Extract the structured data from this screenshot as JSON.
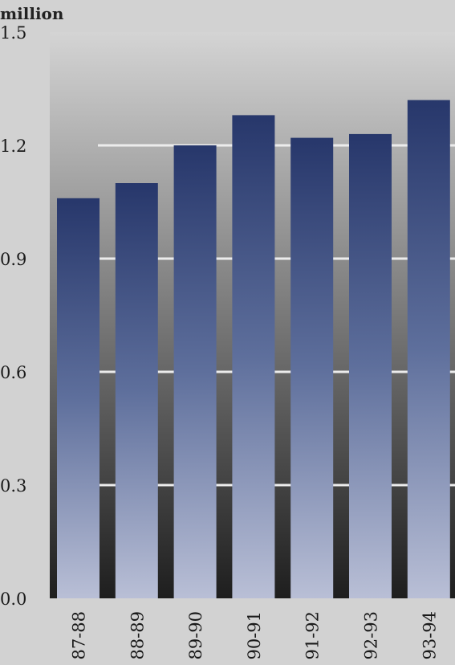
{
  "chart_data": {
    "type": "bar",
    "unit_label": "million",
    "categories": [
      "87-88",
      "88-89",
      "89-90",
      "90-91",
      "91-92",
      "92-93",
      "93-94"
    ],
    "values": [
      1.06,
      1.1,
      1.2,
      1.28,
      1.22,
      1.23,
      1.32
    ],
    "ylim": [
      0.0,
      1.5
    ],
    "yticks": [
      "0.0",
      "0.3",
      "0.6",
      "0.9",
      "1.2",
      "1.5"
    ],
    "xlabel": "",
    "ylabel": "",
    "grid": true,
    "colors": {
      "bar_top": "#27376b",
      "bar_mid": "#5e6f9c",
      "bar_bottom": "#b9bfd6",
      "plot_top": "#d4d4d4",
      "plot_bottom": "#1e1e1e",
      "gridline": "#ececec",
      "page_background": "#d2d2d2"
    }
  }
}
